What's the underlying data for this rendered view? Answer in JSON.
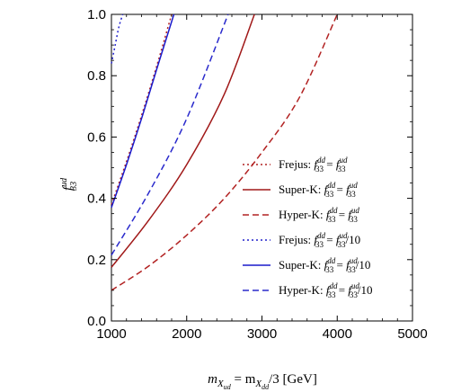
{
  "chart_data": {
    "type": "line",
    "xlabel": {
      "prefix": "m",
      "sub1": "X",
      "sub1sub": "ud",
      "mid": " = m",
      "sub2": "X",
      "sub2sub": "dd",
      "suffix": "/3 [GeV]"
    },
    "ylabel": {
      "base": "f",
      "sup": "ud",
      "sub": "33"
    },
    "xlim": [
      1000,
      5000
    ],
    "ylim": [
      0.0,
      1.0
    ],
    "xticks": [
      1000,
      2000,
      3000,
      4000,
      5000
    ],
    "yticks": [
      0.0,
      0.2,
      0.4,
      0.6,
      0.8,
      1.0
    ],
    "ytick_labels": [
      "0.0",
      "0.2",
      "0.4",
      "0.6",
      "0.8",
      "1.0"
    ],
    "grid": false,
    "legend_position": "right-middle",
    "series": [
      {
        "name": "Frejus: f33dd = f33ud",
        "label": {
          "exp": "Frejus:",
          "ratio": ""
        },
        "color": "#b22222",
        "dash": "dotted",
        "x": [
          1000,
          1200,
          1400,
          1600,
          1800
        ],
        "y": [
          0.38,
          0.52,
          0.67,
          0.83,
          1.0
        ]
      },
      {
        "name": "Super-K: f33dd = f33ud",
        "label": {
          "exp": "Super-K:",
          "ratio": ""
        },
        "color": "#a01818",
        "dash": "solid",
        "x": [
          1000,
          1500,
          2000,
          2500,
          2900
        ],
        "y": [
          0.175,
          0.33,
          0.51,
          0.74,
          1.0
        ]
      },
      {
        "name": "Hyper-K: f33dd = f33ud",
        "label": {
          "exp": "Hyper-K:",
          "ratio": ""
        },
        "color": "#b22222",
        "dash": "dashed",
        "x": [
          1000,
          1500,
          2000,
          2500,
          3000,
          3500,
          4000
        ],
        "y": [
          0.1,
          0.18,
          0.28,
          0.4,
          0.55,
          0.73,
          1.0
        ]
      },
      {
        "name": "Frejus: f33dd = f33ud/10",
        "label": {
          "exp": "Frejus:",
          "ratio": "/10"
        },
        "color": "#2020cc",
        "dash": "dotted",
        "x": [
          1000,
          1050,
          1100,
          1150
        ],
        "y": [
          0.84,
          0.9,
          0.96,
          1.0
        ]
      },
      {
        "name": "Super-K: f33dd = f33ud/10",
        "label": {
          "exp": "Super-K:",
          "ratio": "/10"
        },
        "color": "#1a1acc",
        "dash": "solid",
        "x": [
          1000,
          1200,
          1400,
          1600,
          1830
        ],
        "y": [
          0.37,
          0.51,
          0.66,
          0.82,
          1.0
        ]
      },
      {
        "name": "Hyper-K: f33dd = f33ud/10",
        "label": {
          "exp": "Hyper-K:",
          "ratio": "/10"
        },
        "color": "#2a2acc",
        "dash": "dashed",
        "x": [
          1000,
          1500,
          2000,
          2550
        ],
        "y": [
          0.215,
          0.42,
          0.66,
          1.0
        ]
      }
    ]
  }
}
